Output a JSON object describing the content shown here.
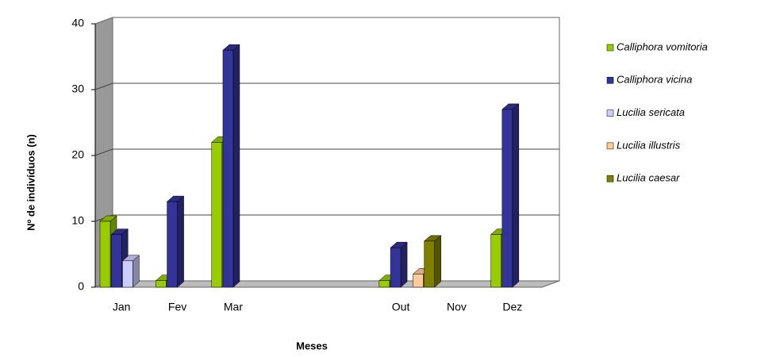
{
  "chart_data": {
    "type": "bar3d",
    "x_label": "Meses",
    "y_label": "Nº de indivíduos (n)",
    "categories": [
      "Jan",
      "Fev",
      "Mar",
      null,
      null,
      "Out",
      "Nov",
      "Dez"
    ],
    "series": [
      {
        "name": "Calliphora vomitoria",
        "color": "#99cc00",
        "values": [
          10,
          1,
          22,
          null,
          null,
          1,
          null,
          8
        ]
      },
      {
        "name": "Calliphora vicina",
        "color": "#333399",
        "values": [
          8,
          13,
          36,
          null,
          null,
          6,
          null,
          27
        ]
      },
      {
        "name": "Lucilia sericata",
        "color": "#ccccff",
        "values": [
          4,
          null,
          null,
          null,
          null,
          null,
          null,
          null
        ]
      },
      {
        "name": "Lucilia illustris",
        "color": "#ffcc99",
        "values": [
          null,
          null,
          null,
          null,
          null,
          2,
          null,
          null
        ]
      },
      {
        "name": "Lucilia caesar",
        "color": "#808000",
        "values": [
          null,
          null,
          null,
          null,
          null,
          7,
          null,
          null
        ]
      }
    ],
    "ylim": [
      0,
      40
    ],
    "yticks": [
      0,
      10,
      20,
      30,
      40
    ],
    "grid": true,
    "legend": "right"
  }
}
